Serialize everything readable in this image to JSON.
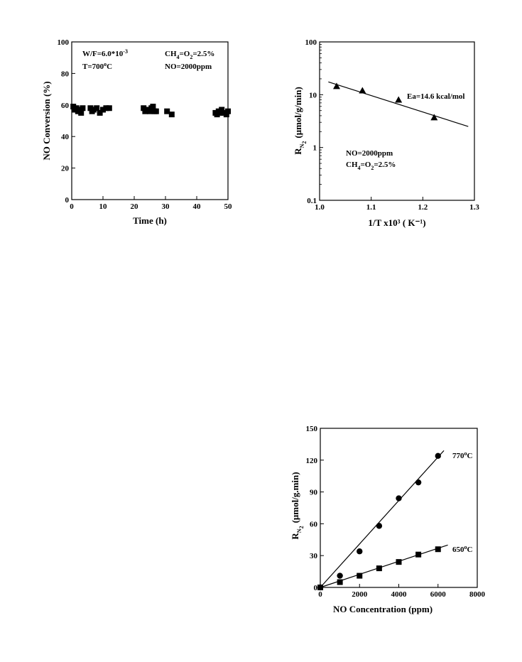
{
  "chart_data": [
    {
      "type": "scatter",
      "xlabel": "Time (h)",
      "ylabel": "NO Conversion (%)",
      "xlim": [
        0,
        50
      ],
      "ylim": [
        0,
        100
      ],
      "xticks": [
        "0",
        "10",
        "20",
        "30",
        "40",
        "50"
      ],
      "yticks": [
        "0",
        "20",
        "40",
        "60",
        "80",
        "100"
      ],
      "annotations": {
        "wf_main": "W/F=6.0*10",
        "wf_exp": "-3",
        "temp_main": "T=700",
        "temp_sup": "o",
        "temp_unit": "C",
        "ch4_a": "CH",
        "ch4_sub1": "4",
        "ch4_b": "=O",
        "ch4_sub2": "2",
        "ch4_c": "=2.5%",
        "no": "NO=2000ppm"
      },
      "series": [
        {
          "marker": "square",
          "x": [
            0.5,
            1.0,
            1.5,
            2.0,
            2.5,
            3.0,
            3.5,
            6.0,
            6.5,
            7.0,
            8.0,
            9.0,
            10.0,
            11.0,
            12.0,
            23.0,
            23.5,
            24.0,
            25.0,
            25.5,
            26.0,
            26.5,
            27.0,
            30.5,
            32.0,
            46.0,
            46.5,
            47.0,
            47.5,
            48.0,
            48.5,
            49.5,
            50.0
          ],
          "y": [
            59,
            57,
            58,
            56,
            57,
            55,
            58,
            58,
            56,
            57,
            58,
            55,
            57,
            58,
            58,
            58,
            56,
            57,
            56,
            58,
            59,
            56,
            56,
            56,
            54,
            55,
            54,
            56,
            55,
            57,
            55,
            54,
            56
          ]
        }
      ]
    },
    {
      "type": "scatter",
      "xlabel": "1/T x10³ ( K⁻¹)",
      "ylabel_main": "R",
      "ylabel_sub1": "N",
      "ylabel_sub2": "2",
      "ylabel_unit": "(μmol/g/min)",
      "yscale": "log",
      "xlim": [
        1.0,
        1.3
      ],
      "ylim": [
        0.1,
        100
      ],
      "xticks": [
        "1.0",
        "1.1",
        "1.2",
        "1.3"
      ],
      "yticks": [
        "0.1",
        "1",
        "10",
        "100"
      ],
      "annotations": {
        "ea": "Ea=14.6 kcal/mol",
        "no": "NO=2000ppm",
        "ch4_a": "CH",
        "ch4_sub1": "4",
        "ch4_b": "=O",
        "ch4_sub2": "2",
        "ch4_c": "=2.5%"
      },
      "series": [
        {
          "marker": "triangle",
          "x": [
            1.033,
            1.083,
            1.153,
            1.222
          ],
          "y": [
            14.5,
            12.0,
            8.0,
            3.7
          ]
        }
      ],
      "fit_line": {
        "x": [
          1.017,
          1.288
        ],
        "y": [
          17.5,
          2.5
        ]
      }
    },
    {
      "type": "scatter",
      "xlabel": "NO Concentration (ppm)",
      "ylabel_main": "R",
      "ylabel_sub1": "N",
      "ylabel_sub2": "2",
      "ylabel_unit": "(μmol/g.min)",
      "xlim": [
        0,
        8000
      ],
      "ylim": [
        0,
        150
      ],
      "xticks": [
        "0",
        "2000",
        "4000",
        "6000",
        "8000"
      ],
      "yticks": [
        "0",
        "30",
        "60",
        "90",
        "120",
        "150"
      ],
      "series": [
        {
          "label_main": "770",
          "label_sup": "o",
          "label_unit": "C",
          "marker": "circle",
          "x": [
            0,
            1000,
            2000,
            3000,
            4000,
            5000,
            6000
          ],
          "y": [
            0,
            11,
            34,
            58,
            84,
            99,
            124
          ],
          "fit_line": {
            "x": [
              0,
              6300
            ],
            "y": [
              0,
              129
            ]
          }
        },
        {
          "label_main": "650",
          "label_sup": "o",
          "label_unit": "C",
          "marker": "square",
          "x": [
            0,
            1000,
            2000,
            3000,
            4000,
            5000,
            6000
          ],
          "y": [
            0,
            5,
            11,
            18,
            24,
            31,
            36
          ],
          "fit_line": {
            "x": [
              0,
              6500
            ],
            "y": [
              0,
              40
            ]
          }
        }
      ]
    }
  ]
}
